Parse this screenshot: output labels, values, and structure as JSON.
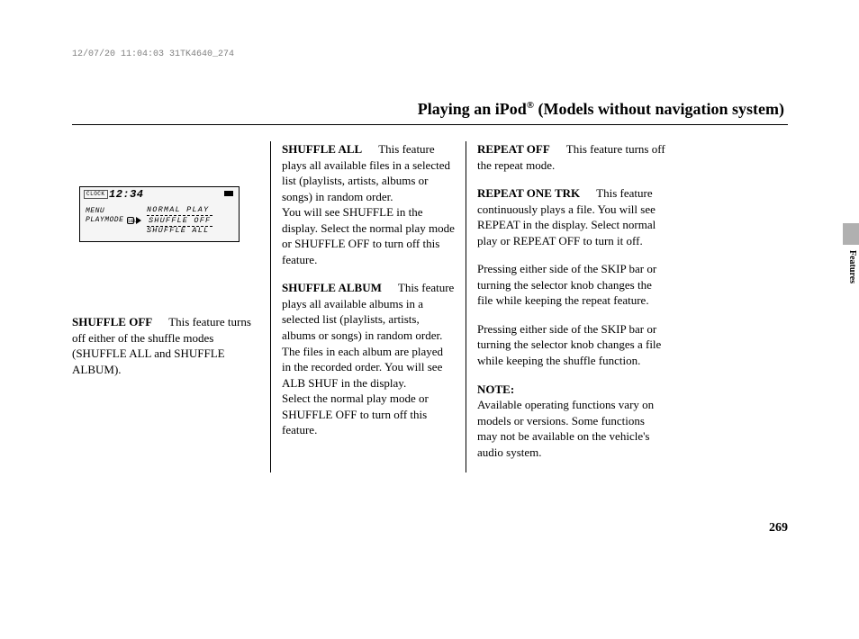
{
  "header_stamp": "12/07/20 11:04:03 31TK4640_274",
  "page_title_pre": "Playing an iPod",
  "page_title_post": " (Models without navigation system)",
  "registered": "®",
  "display": {
    "clock_label": "CLOCK",
    "time": "12:34",
    "menu": "MENU",
    "playmode": "PLAYMODE",
    "sel": "SEL",
    "opt1": "NORMAL PLAY",
    "opt2": "SHUFFLE OFF",
    "opt3": "SHUFFLE ALL"
  },
  "col1": {
    "shuffle_off_term": "SHUFFLE OFF",
    "shuffle_off_body": "This feature turns off either of the shuffle modes (SHUFFLE ALL and SHUFFLE ALBUM)."
  },
  "col2": {
    "shuffle_all_term": "SHUFFLE ALL",
    "shuffle_all_body1": "This feature plays all available files in a selected list (playlists, artists, albums or songs) in random order.",
    "shuffle_all_body2": "You will see SHUFFLE in the display. Select the normal play mode or SHUFFLE OFF to turn off this feature.",
    "shuffle_album_term": "SHUFFLE ALBUM",
    "shuffle_album_body1": "This feature plays all available albums in a selected list (playlists, artists, albums or songs) in random order. The files in each album are played in the recorded order. You will see ALB SHUF in the display.",
    "shuffle_album_body2": "Select the normal play mode or SHUFFLE OFF to turn off this feature."
  },
  "col3": {
    "repeat_off_term": "REPEAT OFF",
    "repeat_off_body": "This feature turns off the repeat mode.",
    "repeat_one_term": "REPEAT ONE TRK",
    "repeat_one_body": "This feature continuously plays a file. You will see REPEAT in the display. Select normal play or REPEAT OFF to turn it off.",
    "skip1": "Pressing either side of the SKIP bar or turning the selector knob changes the file while keeping the repeat feature.",
    "skip2": "Pressing either side of the SKIP bar or turning the selector knob changes a file while keeping the shuffle function.",
    "note_label": "NOTE:",
    "note_body": "Available operating functions vary on models or versions. Some functions may not be available on the vehicle's audio system."
  },
  "side_label": "Features",
  "page_number": "269"
}
